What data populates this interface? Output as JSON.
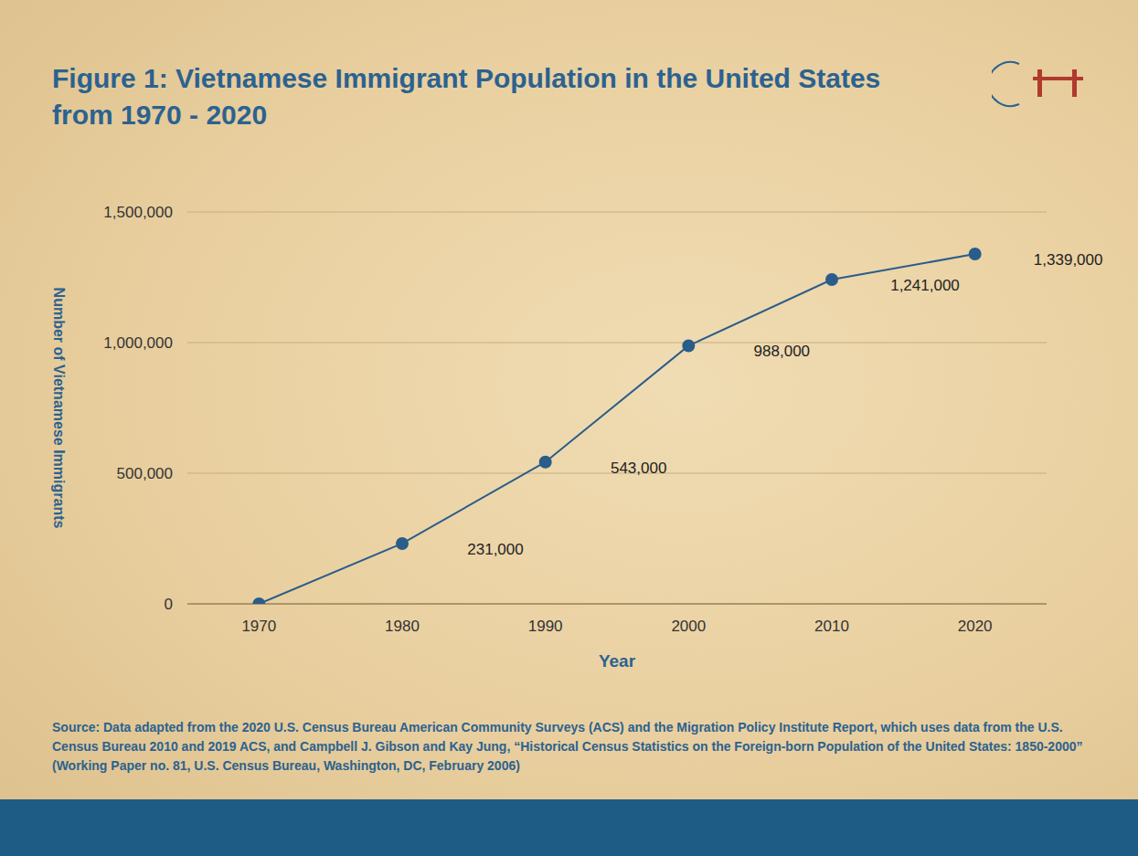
{
  "chart_data": {
    "type": "line",
    "title": "Figure 1: Vietnamese Immigrant Population in the United States from 1970 - 2020",
    "x_label": "Year",
    "y_label": "Number of Vietnamese Immigrants",
    "x": [
      1970,
      1980,
      1990,
      2000,
      2010,
      2020
    ],
    "values": [
      0,
      231000,
      543000,
      988000,
      1241000,
      1339000
    ],
    "value_labels": [
      null,
      "231,000",
      "543,000",
      "988,000",
      "1,241,000",
      "1,339,000"
    ],
    "data_labels": true,
    "color": "#2a5d8a",
    "marker": "circle",
    "line_style": "solid",
    "xlim": [
      1965,
      2025
    ],
    "xticks": [
      1970,
      1980,
      1990,
      2000,
      2010,
      2020
    ],
    "ylim": [
      0,
      1500000
    ],
    "yticks": [
      0,
      {
        "value": 500000,
        "label": "500,000"
      },
      {
        "value": 1000000,
        "label": "1,000,000"
      },
      {
        "value": 1500000,
        "label": "1,500,000"
      }
    ],
    "grid": true,
    "source": "Source: Data adapted from the 2020 U.S. Census Bureau American Community Surveys (ACS) and the Migration Policy Institute Report, which uses data from the U.S. Census Bureau 2010 and 2019 ACS, and Campbell J. Gibson and Kay Jung, “Historical Census Statistics on the Foreign-born Population of the United States: 1850-2000” (Working Paper no. 81, U.S. Census Bureau, Washington, DC, February 2006)"
  }
}
